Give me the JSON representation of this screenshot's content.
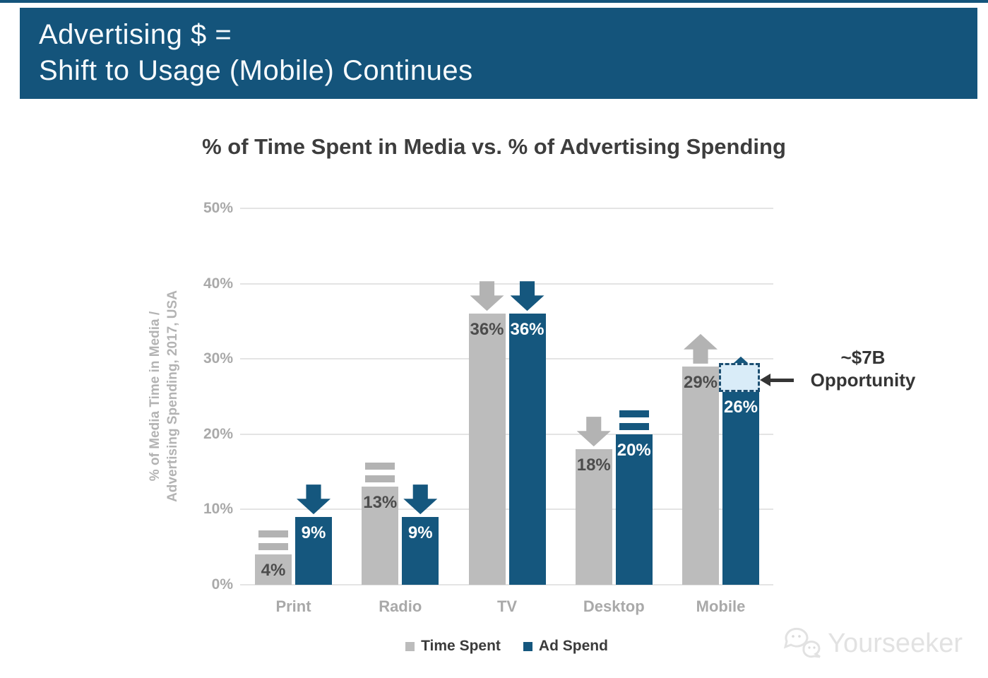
{
  "header": {
    "line1": "Advertising $ =",
    "line2": "Shift to Usage (Mobile) Continues",
    "background_color": "#14547b"
  },
  "chart_data": {
    "type": "bar",
    "title": "% of Time Spent in Media vs. % of Advertising Spending",
    "y_axis_label": {
      "line1": "% of Media Time in Media /",
      "line2": "Advertising Spending, 2017, USA"
    },
    "categories": [
      "Print",
      "Radio",
      "TV",
      "Desktop",
      "Mobile"
    ],
    "series": [
      {
        "name": "Time Spent",
        "color": "#bcbcbc",
        "label_color": "#4c4c4c",
        "values": [
          4,
          13,
          36,
          18,
          29
        ],
        "value_labels": [
          "4%",
          "13%",
          "36%",
          "18%",
          "29%"
        ],
        "trends": [
          "equals",
          "equals",
          "down",
          "down",
          "up"
        ]
      },
      {
        "name": "Ad Spend",
        "color": "#15577e",
        "label_color": "#ffffff",
        "values": [
          9,
          9,
          36,
          20,
          26
        ],
        "value_labels": [
          "9%",
          "9%",
          "36%",
          "20%",
          "26%"
        ],
        "trends": [
          "down",
          "down",
          "down",
          "equals",
          "up"
        ]
      }
    ],
    "ylim": [
      0,
      50
    ],
    "yticks": [
      {
        "value": 0,
        "label": "0%"
      },
      {
        "value": 10,
        "label": "10%"
      },
      {
        "value": 20,
        "label": "20%"
      },
      {
        "value": 30,
        "label": "30%"
      },
      {
        "value": 40,
        "label": "40%"
      },
      {
        "value": 50,
        "label": "50%"
      }
    ],
    "grid": true,
    "legend_position": "bottom",
    "annotation": {
      "line1": "~$7B",
      "line2": "Opportunity",
      "category": "Mobile",
      "from": 26,
      "to": 29.8,
      "box_fill": "#d9ecf8",
      "box_border": "#1d4f71"
    }
  },
  "legend": {
    "items": [
      {
        "label": "Time Spent",
        "color": "#bcbcbc"
      },
      {
        "label": "Ad Spend",
        "color": "#15577e"
      }
    ]
  },
  "watermark": {
    "text": "Yourseeker"
  }
}
